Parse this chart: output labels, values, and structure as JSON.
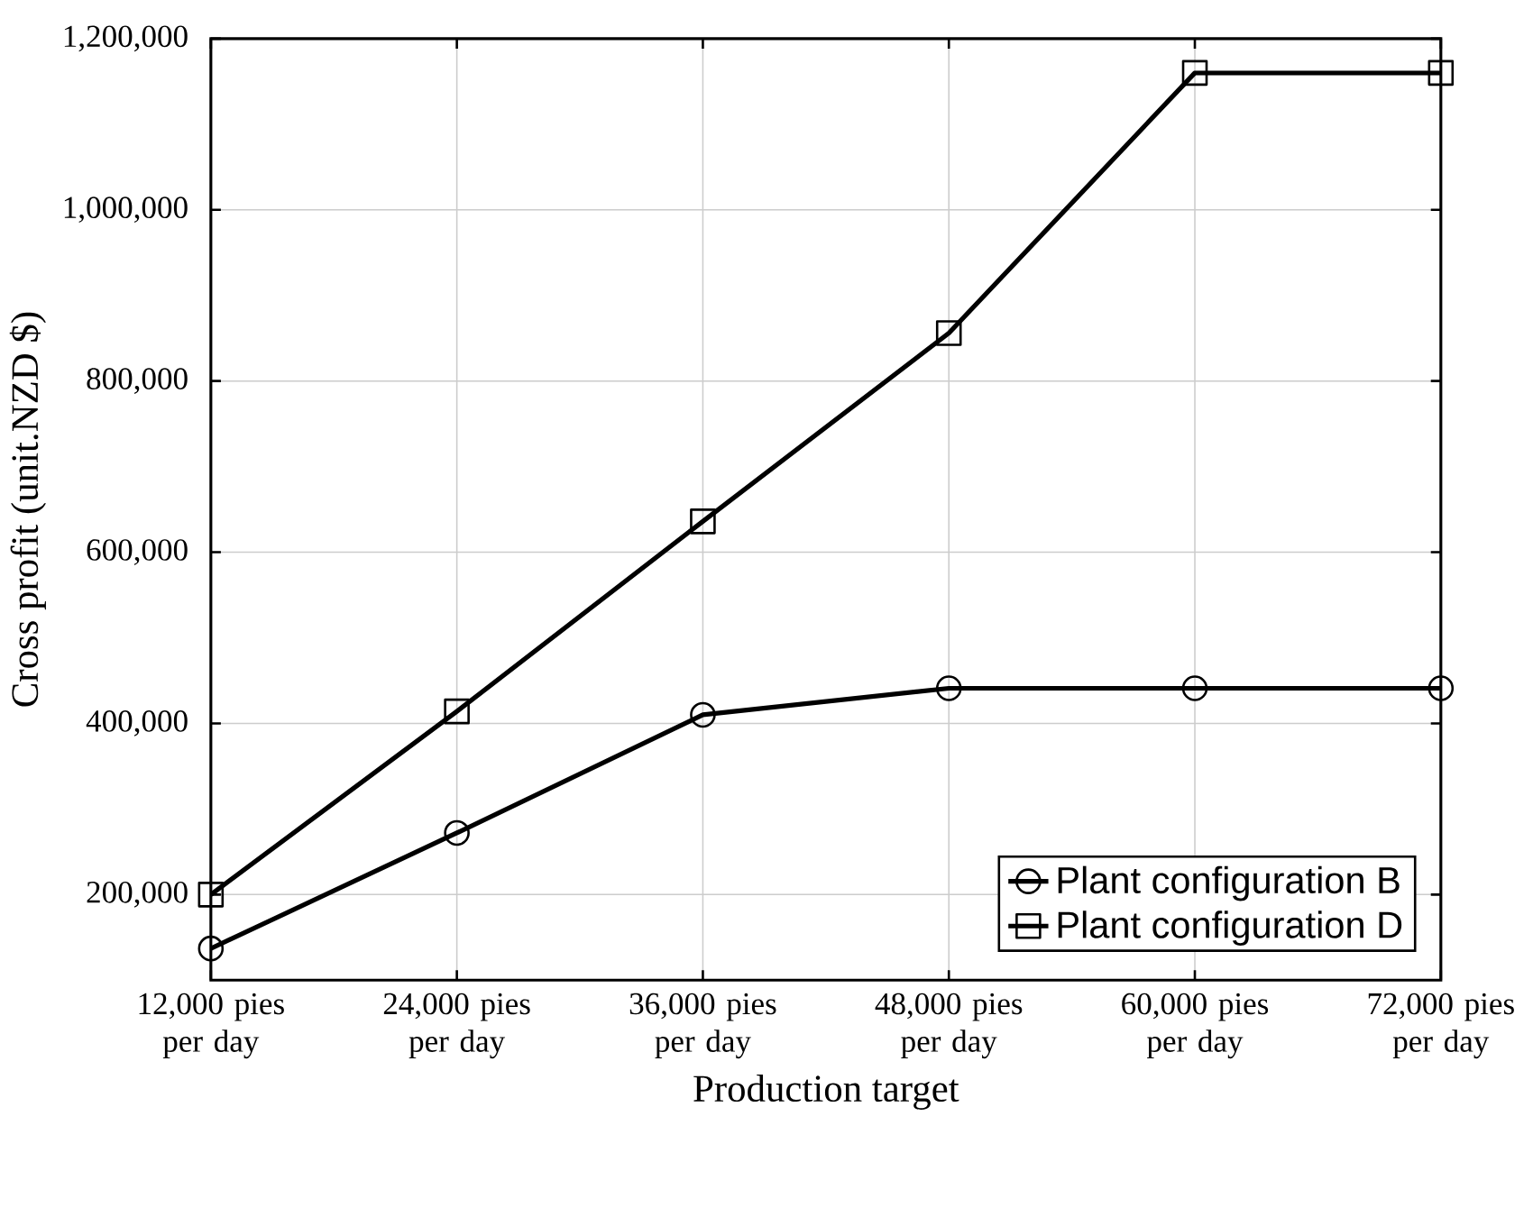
{
  "chart_data": {
    "type": "line",
    "xlabel": "Production target",
    "ylabel": "Cross profit (unit.NZD $)",
    "categories": [
      "12,000 pies per day",
      "24,000 pies per day",
      "36,000 pies per day",
      "48,000 pies per day",
      "60,000 pies per day",
      "72,000 pies per day"
    ],
    "series": [
      {
        "name": "Plant configuration B",
        "color": "#000000",
        "marker": "circle",
        "values": [
          137000,
          272000,
          410000,
          441000,
          441000,
          441000
        ]
      },
      {
        "name": "Plant configuration D",
        "color": "#000000",
        "marker": "square",
        "values": [
          200000,
          414000,
          636000,
          856000,
          1160000,
          1160000
        ]
      }
    ],
    "ylim": [
      100000,
      1200000
    ],
    "yticks": [
      {
        "value": 200000,
        "label": "200,000"
      },
      {
        "value": 400000,
        "label": "400,000"
      },
      {
        "value": 600000,
        "label": "600,000"
      },
      {
        "value": 800000,
        "label": "800,000"
      },
      {
        "value": 1000000,
        "label": "1,000,000"
      },
      {
        "value": 1200000,
        "label": "1,200,000"
      }
    ],
    "grid": true,
    "legend": "bottom right",
    "line_style": "solid"
  }
}
